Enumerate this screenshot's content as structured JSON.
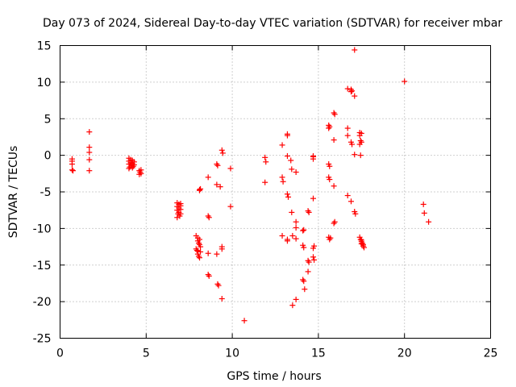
{
  "chart_data": {
    "type": "scatter",
    "title": "Day 073 of 2024, Sidereal Day-to-day VTEC variation (SDTVAR) for receiver mbar",
    "xlabel": "GPS time / hours",
    "ylabel": "SDTVAR / TECUs",
    "xlim": [
      0,
      25
    ],
    "ylim": [
      -25,
      15
    ],
    "xticks": [
      0,
      5,
      10,
      15,
      20,
      25
    ],
    "yticks": [
      -25,
      -20,
      -15,
      -10,
      -5,
      0,
      5,
      10,
      15
    ],
    "xtick_labels": [
      "0",
      "5",
      "10",
      "15",
      "20",
      "25"
    ],
    "ytick_labels": [
      "-25",
      "-20",
      "-15",
      "-10",
      "-5",
      "0",
      "5",
      "10",
      "15"
    ],
    "grid": true,
    "marker": "plus",
    "color": "#ff0000",
    "series": [
      {
        "name": "SDTVAR",
        "points": [
          [
            0.7,
            -0.5
          ],
          [
            0.7,
            -0.8
          ],
          [
            0.7,
            -1.2
          ],
          [
            0.7,
            -2.0
          ],
          [
            0.75,
            -2.1
          ],
          [
            1.7,
            3.2
          ],
          [
            1.7,
            1.1
          ],
          [
            1.7,
            0.4
          ],
          [
            1.7,
            -0.6
          ],
          [
            1.7,
            -2.1
          ],
          [
            4.0,
            -0.4
          ],
          [
            4.0,
            -0.8
          ],
          [
            4.0,
            -1.2
          ],
          [
            4.05,
            -1.6
          ],
          [
            4.1,
            -0.6
          ],
          [
            4.1,
            -1.0
          ],
          [
            4.15,
            -1.4
          ],
          [
            4.2,
            -0.7
          ],
          [
            4.2,
            -1.1
          ],
          [
            4.25,
            -1.5
          ],
          [
            4.3,
            -0.9
          ],
          [
            4.3,
            -1.3
          ],
          [
            4.0,
            -1.8
          ],
          [
            4.2,
            -1.7
          ],
          [
            4.6,
            -2.1
          ],
          [
            4.65,
            -2.3
          ],
          [
            4.7,
            -2.5
          ],
          [
            4.7,
            -2.0
          ],
          [
            4.6,
            -2.6
          ],
          [
            6.8,
            -6.5
          ],
          [
            6.8,
            -7.0
          ],
          [
            6.8,
            -7.5
          ],
          [
            6.85,
            -8.0
          ],
          [
            6.9,
            -6.7
          ],
          [
            6.9,
            -7.2
          ],
          [
            6.9,
            -7.8
          ],
          [
            6.95,
            -8.3
          ],
          [
            7.0,
            -6.9
          ],
          [
            7.0,
            -7.4
          ],
          [
            7.0,
            -8.0
          ],
          [
            6.8,
            -8.5
          ],
          [
            7.0,
            -6.6
          ],
          [
            7.9,
            -11.0
          ],
          [
            8.0,
            -11.3
          ],
          [
            8.0,
            -11.7
          ],
          [
            8.05,
            -12.0
          ],
          [
            8.1,
            -11.5
          ],
          [
            8.1,
            -12.2
          ],
          [
            8.15,
            -12.5
          ],
          [
            7.9,
            -12.8
          ],
          [
            8.0,
            -13.1
          ],
          [
            8.0,
            -13.5
          ],
          [
            8.05,
            -13.8
          ],
          [
            8.1,
            -14.0
          ],
          [
            8.15,
            -13.2
          ],
          [
            7.95,
            -13.0
          ],
          [
            8.1,
            -4.8
          ],
          [
            8.15,
            -4.6
          ],
          [
            8.1,
            -4.7
          ],
          [
            8.6,
            -3.0
          ],
          [
            8.6,
            -8.3
          ],
          [
            8.65,
            -8.5
          ],
          [
            8.6,
            -13.4
          ],
          [
            8.6,
            -16.3
          ],
          [
            8.65,
            -16.5
          ],
          [
            9.1,
            -1.2
          ],
          [
            9.15,
            -1.4
          ],
          [
            9.1,
            -4.0
          ],
          [
            9.3,
            -4.3
          ],
          [
            9.1,
            -13.5
          ],
          [
            9.2,
            -17.8
          ],
          [
            9.15,
            -17.6
          ],
          [
            9.4,
            0.7
          ],
          [
            9.45,
            0.3
          ],
          [
            9.4,
            -12.5
          ],
          [
            9.4,
            -12.8
          ],
          [
            9.4,
            -19.6
          ],
          [
            9.9,
            -1.8
          ],
          [
            9.9,
            -7.0
          ],
          [
            10.7,
            -22.6
          ],
          [
            11.9,
            -0.3
          ],
          [
            11.95,
            -0.9
          ],
          [
            11.9,
            -3.7
          ],
          [
            12.9,
            1.4
          ],
          [
            12.9,
            -3.0
          ],
          [
            12.95,
            -3.6
          ],
          [
            12.9,
            -11.0
          ],
          [
            13.2,
            2.9
          ],
          [
            13.2,
            2.7
          ],
          [
            13.2,
            -0.1
          ],
          [
            13.2,
            -5.3
          ],
          [
            13.25,
            -5.7
          ],
          [
            13.2,
            -11.7
          ],
          [
            13.2,
            -11.5
          ],
          [
            13.4,
            -0.7
          ],
          [
            13.45,
            -1.9
          ],
          [
            13.45,
            -7.8
          ],
          [
            13.5,
            -11.0
          ],
          [
            13.5,
            -20.5
          ],
          [
            13.7,
            -2.3
          ],
          [
            13.7,
            -9.1
          ],
          [
            13.7,
            -9.9
          ],
          [
            13.7,
            -11.4
          ],
          [
            13.7,
            -19.7
          ],
          [
            14.1,
            -10.3
          ],
          [
            14.15,
            -10.2
          ],
          [
            14.1,
            -12.3
          ],
          [
            14.15,
            -12.6
          ],
          [
            14.1,
            -17.0
          ],
          [
            14.15,
            -17.2
          ],
          [
            14.2,
            -18.3
          ],
          [
            14.4,
            -7.6
          ],
          [
            14.45,
            -7.8
          ],
          [
            14.4,
            -14.4
          ],
          [
            14.45,
            -14.6
          ],
          [
            14.4,
            -15.9
          ],
          [
            14.7,
            -0.2
          ],
          [
            14.7,
            -0.5
          ],
          [
            14.7,
            -0.1
          ],
          [
            14.7,
            -5.9
          ],
          [
            14.7,
            -12.7
          ],
          [
            14.75,
            -12.4
          ],
          [
            14.7,
            -13.9
          ],
          [
            14.75,
            -14.3
          ],
          [
            15.6,
            3.7
          ],
          [
            15.6,
            4.1
          ],
          [
            15.65,
            3.9
          ],
          [
            15.6,
            -1.2
          ],
          [
            15.65,
            -1.5
          ],
          [
            15.6,
            -3.0
          ],
          [
            15.65,
            -3.3
          ],
          [
            15.6,
            -11.2
          ],
          [
            15.65,
            -11.5
          ],
          [
            15.7,
            -11.3
          ],
          [
            15.9,
            5.8
          ],
          [
            15.95,
            5.6
          ],
          [
            15.9,
            2.1
          ],
          [
            15.9,
            -4.2
          ],
          [
            15.9,
            -9.3
          ],
          [
            15.95,
            -9.1
          ],
          [
            16.7,
            9.1
          ],
          [
            16.7,
            3.7
          ],
          [
            16.7,
            2.7
          ],
          [
            16.7,
            -5.5
          ],
          [
            16.9,
            8.7
          ],
          [
            16.9,
            9.0
          ],
          [
            16.95,
            8.8
          ],
          [
            16.9,
            1.8
          ],
          [
            16.95,
            1.5
          ],
          [
            16.9,
            -6.3
          ],
          [
            17.1,
            14.4
          ],
          [
            17.1,
            8.1
          ],
          [
            17.1,
            0.1
          ],
          [
            17.1,
            -7.7
          ],
          [
            17.15,
            -8.0
          ],
          [
            17.4,
            3.1
          ],
          [
            17.4,
            2.7
          ],
          [
            17.45,
            2.0
          ],
          [
            17.4,
            1.5
          ],
          [
            17.5,
            1.8
          ],
          [
            17.5,
            3.0
          ],
          [
            17.45,
            0.0
          ],
          [
            17.4,
            -11.2
          ],
          [
            17.45,
            -11.5
          ],
          [
            17.5,
            -11.8
          ],
          [
            17.5,
            -12.1
          ],
          [
            17.55,
            -12.0
          ],
          [
            17.6,
            -12.4
          ],
          [
            17.65,
            -12.6
          ],
          [
            17.6,
            -12.2
          ],
          [
            17.5,
            -11.6
          ],
          [
            20.0,
            10.1
          ],
          [
            21.1,
            -6.7
          ],
          [
            21.15,
            -7.9
          ],
          [
            21.4,
            -9.1
          ]
        ]
      }
    ]
  }
}
